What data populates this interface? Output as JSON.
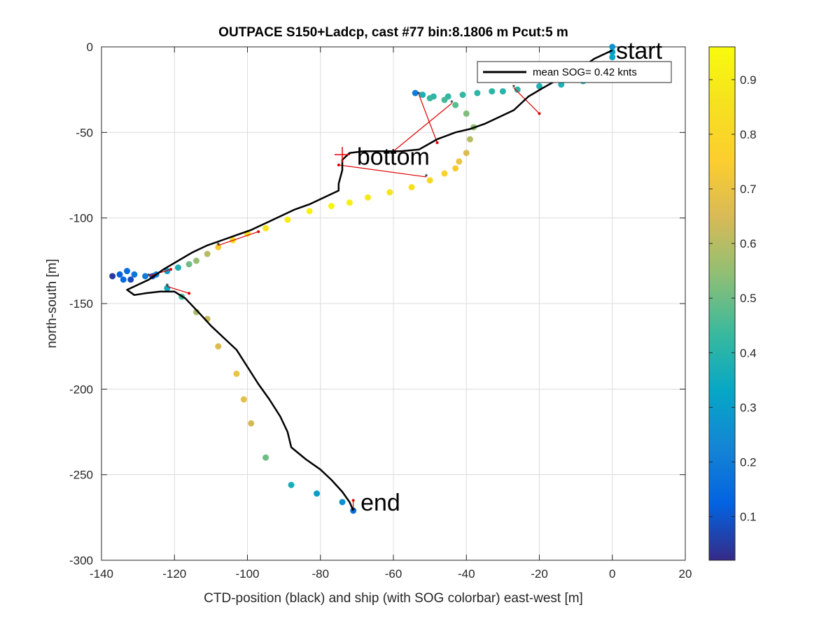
{
  "chart_data": {
    "type": "scatter",
    "title": "OUTPACE S150+Ladcp, cast #77 bin:8.1806 m  Pcut:5 m",
    "xlabel": "CTD-position (black) and ship (with SOG colorbar) east-west [m]",
    "ylabel": "north-south [m]",
    "xlim": [
      -140,
      20
    ],
    "ylim": [
      -300,
      0
    ],
    "xticks": [
      -140,
      -120,
      -100,
      -80,
      -60,
      -40,
      -20,
      0,
      20
    ],
    "yticks": [
      0,
      -50,
      -100,
      -150,
      -200,
      -250,
      -300
    ],
    "grid": true,
    "legend": {
      "label": "mean SOG=  0.42 knts",
      "position": "top-right"
    },
    "colorbar": {
      "min": 0.02,
      "max": 0.96,
      "ticks": [
        0.1,
        0.2,
        0.3,
        0.4,
        0.5,
        0.6,
        0.7,
        0.8,
        0.9
      ]
    },
    "annotations": [
      {
        "text": "start",
        "x": 1,
        "y": -2
      },
      {
        "text": "bottom",
        "x": -70,
        "y": -64
      },
      {
        "text": "end",
        "x": -69,
        "y": -266
      }
    ],
    "bottom_marker": {
      "x": -74,
      "y": -63
    },
    "ctd_track": {
      "name": "CTD-position",
      "x": [
        0,
        -5,
        -9,
        -14,
        -19,
        -23,
        -27,
        -32,
        -35,
        -39,
        -43,
        -48,
        -53,
        -58,
        -63,
        -68,
        -72,
        -74,
        -74,
        -75,
        -75,
        -79,
        -83,
        -87,
        -91,
        -95,
        -99,
        -103,
        -107,
        -111,
        -115,
        -119,
        -123,
        -127,
        -131,
        -133,
        -131,
        -128,
        -124,
        -120,
        -117,
        -113,
        -110,
        -106,
        -103,
        -100,
        -97,
        -94,
        -91,
        -89,
        -88,
        -84,
        -80,
        -77,
        -74,
        -72,
        -71
      ],
      "y": [
        -2,
        -7,
        -13,
        -18,
        -24,
        -29,
        -37,
        -42,
        -45,
        -48,
        -50,
        -54,
        -60,
        -61,
        -61,
        -61,
        -62,
        -66,
        -72,
        -80,
        -84,
        -88,
        -92,
        -95,
        -99,
        -103,
        -107,
        -110,
        -113,
        -116,
        -120,
        -125,
        -130,
        -136,
        -140,
        -142,
        -145,
        -144,
        -143,
        -143,
        -147,
        -156,
        -163,
        -171,
        -177,
        -187,
        -197,
        -206,
        -216,
        -225,
        -234,
        -241,
        -247,
        -253,
        -260,
        -266,
        -271
      ]
    },
    "ship_points": {
      "x": [
        0,
        0,
        0,
        -8,
        -14,
        -20,
        -26,
        -30,
        -33,
        -37,
        -41,
        -45,
        -49,
        -52,
        -54,
        -50,
        -46,
        -43,
        -40,
        -38,
        -39,
        -40,
        -42,
        -43,
        -46,
        -50,
        -55,
        -61,
        -67,
        -72,
        -77,
        -83,
        -89,
        -95,
        -100,
        -104,
        -108,
        -111,
        -114,
        -116,
        -119,
        -122,
        -125,
        -128,
        -131,
        -133,
        -135,
        -134,
        -137,
        -132,
        -126,
        -122,
        -118,
        -114,
        -111,
        -108,
        -103,
        -101,
        -99,
        -95,
        -88,
        -81,
        -74,
        -71
      ],
      "y": [
        0,
        -3,
        -6,
        -20,
        -22,
        -23,
        -25,
        -26,
        -26,
        -27,
        -28,
        -29,
        -29,
        -28,
        -27,
        -30,
        -31,
        -34,
        -39,
        -47,
        -54,
        -62,
        -67,
        -71,
        -74,
        -78,
        -82,
        -85,
        -88,
        -91,
        -93,
        -96,
        -101,
        -106,
        -109,
        -113,
        -117,
        -121,
        -125,
        -127,
        -129,
        -131,
        -133,
        -134,
        -133,
        -131,
        -133,
        -136,
        -134,
        -136,
        -134,
        -141,
        -146,
        -155,
        -159,
        -175,
        -191,
        -206,
        -220,
        -240,
        -256,
        -261,
        -266,
        -271
      ],
      "sog": [
        0.27,
        0.3,
        0.33,
        0.37,
        0.38,
        0.39,
        0.4,
        0.4,
        0.41,
        0.41,
        0.42,
        0.42,
        0.41,
        0.38,
        0.2,
        0.43,
        0.45,
        0.48,
        0.52,
        0.55,
        0.6,
        0.66,
        0.7,
        0.74,
        0.77,
        0.8,
        0.84,
        0.87,
        0.89,
        0.91,
        0.93,
        0.92,
        0.9,
        0.88,
        0.85,
        0.82,
        0.73,
        0.6,
        0.55,
        0.5,
        0.38,
        0.3,
        0.22,
        0.2,
        0.18,
        0.15,
        0.12,
        0.14,
        0.05,
        0.08,
        0.1,
        0.35,
        0.45,
        0.58,
        0.62,
        0.66,
        0.7,
        0.68,
        0.64,
        0.5,
        0.37,
        0.3,
        0.26,
        0.16
      ]
    },
    "pairings": [
      {
        "ctd": [
          -53,
          -28
        ],
        "ship": [
          -48,
          -56
        ]
      },
      {
        "ctd": [
          -44,
          -33
        ],
        "ship": [
          -60,
          -61
        ]
      },
      {
        "ctd": [
          -27,
          -24
        ],
        "ship": [
          -20,
          -39
        ]
      },
      {
        "ctd": [
          -51,
          -76
        ],
        "ship": [
          -75,
          -69
        ]
      },
      {
        "ctd": [
          -108,
          -116
        ],
        "ship": [
          -97,
          -108
        ]
      },
      {
        "ctd": [
          -127,
          -134
        ],
        "ship": [
          -121,
          -130
        ]
      },
      {
        "ctd": [
          -122,
          -140
        ],
        "ship": [
          -116,
          -144
        ]
      },
      {
        "ctd": [
          -71,
          -271
        ],
        "ship": [
          -71,
          -265
        ]
      }
    ]
  }
}
